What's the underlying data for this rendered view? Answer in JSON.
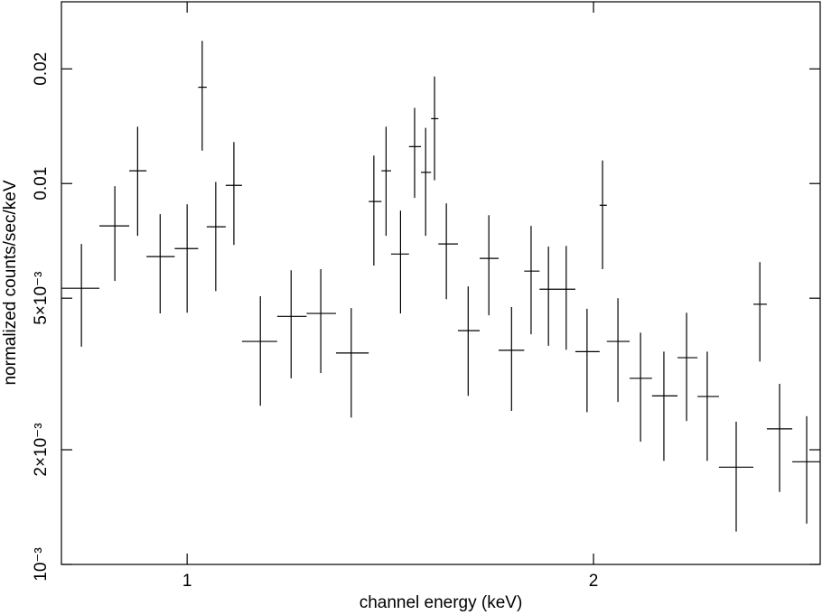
{
  "chart_data": {
    "type": "errorbar",
    "xlabel": "channel energy (keV)",
    "ylabel": "normalized counts/sec/keV",
    "xscale": "log",
    "yscale": "log",
    "color": "#000000",
    "xlim": [
      0.807,
      2.944
    ],
    "ylim": [
      0.001,
      0.03
    ],
    "xticks": [
      1,
      2
    ],
    "yticks": [
      {
        "value": 0.001,
        "label": "10⁻³"
      },
      {
        "value": 0.002,
        "label": "2×10⁻³"
      },
      {
        "value": 0.005,
        "label": "5×10⁻³"
      },
      0.01,
      0.02
    ],
    "x": [
      0.835,
      0.884,
      0.919,
      0.955,
      1.0,
      1.026,
      1.05,
      1.083,
      1.133,
      1.194,
      1.256,
      1.323,
      1.375,
      1.404,
      1.439,
      1.474,
      1.502,
      1.525,
      1.556,
      1.615,
      1.673,
      1.739,
      1.798,
      1.852,
      1.909,
      1.978,
      2.031,
      2.085,
      2.167,
      2.255,
      2.344,
      2.428,
      2.551,
      2.656,
      2.747,
      2.877
    ],
    "x_low": [
      0.807,
      0.861,
      0.906,
      0.933,
      0.979,
      1.019,
      1.034,
      1.068,
      1.098,
      1.166,
      1.226,
      1.289,
      1.363,
      1.393,
      1.416,
      1.46,
      1.49,
      1.516,
      1.535,
      1.587,
      1.647,
      1.701,
      1.777,
      1.824,
      1.886,
      1.939,
      2.021,
      2.046,
      2.127,
      2.21,
      2.308,
      2.388,
      2.477,
      2.627,
      2.688,
      2.807
    ],
    "x_high": [
      0.861,
      0.906,
      0.933,
      0.979,
      1.019,
      1.034,
      1.068,
      1.098,
      1.166,
      1.226,
      1.289,
      1.363,
      1.393,
      1.416,
      1.46,
      1.49,
      1.516,
      1.535,
      1.587,
      1.647,
      1.701,
      1.777,
      1.824,
      1.886,
      1.939,
      2.021,
      2.046,
      2.127,
      2.21,
      2.308,
      2.388,
      2.477,
      2.627,
      2.688,
      2.807,
      2.944
    ],
    "values": [
      0.00531,
      0.00774,
      0.0108,
      0.00643,
      0.00675,
      0.0179,
      0.0077,
      0.00989,
      0.00385,
      0.00448,
      0.00456,
      0.00359,
      0.00897,
      0.0108,
      0.00653,
      0.0125,
      0.0107,
      0.0148,
      0.00694,
      0.00411,
      0.00636,
      0.00365,
      0.00589,
      0.00528,
      0.00528,
      0.00362,
      0.00877,
      0.00385,
      0.00308,
      0.00277,
      0.00349,
      0.00276,
      0.0018,
      0.00482,
      0.00227,
      0.00186
    ],
    "y_low": [
      0.00373,
      0.00555,
      0.00729,
      0.00456,
      0.00458,
      0.0122,
      0.00522,
      0.0069,
      0.00261,
      0.00308,
      0.00318,
      0.00243,
      0.00609,
      0.00729,
      0.00456,
      0.00917,
      0.00729,
      0.0102,
      0.00497,
      0.00277,
      0.00451,
      0.00253,
      0.00402,
      0.00375,
      0.00366,
      0.00251,
      0.00596,
      0.00267,
      0.0021,
      0.00187,
      0.00238,
      0.00187,
      0.00122,
      0.00341,
      0.00155,
      0.00128
    ],
    "y_high": [
      0.00694,
      0.00984,
      0.0141,
      0.00831,
      0.00882,
      0.0237,
      0.0101,
      0.01285,
      0.00506,
      0.00592,
      0.00596,
      0.00471,
      0.01184,
      0.0141,
      0.00849,
      0.0158,
      0.014,
      0.0191,
      0.00887,
      0.00537,
      0.00826,
      0.00474,
      0.00774,
      0.00683,
      0.00686,
      0.00469,
      0.0115,
      0.005,
      0.00406,
      0.00362,
      0.00458,
      0.00362,
      0.00237,
      0.00622,
      0.00298,
      0.00245
    ]
  }
}
